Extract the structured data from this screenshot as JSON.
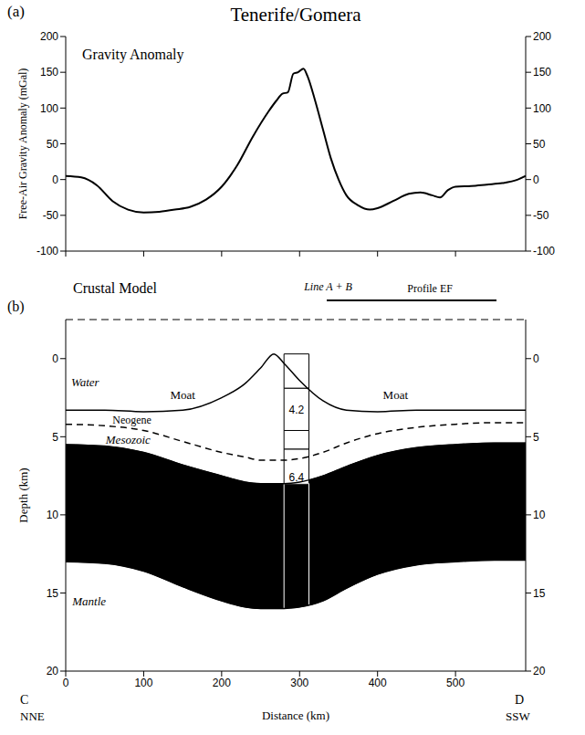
{
  "chart_data": [
    {
      "type": "line",
      "title": "Tenerife/Gomera",
      "panel_label": "(a)",
      "annotations": [
        "Gravity Anomaly"
      ],
      "y_label": "Free-Air Gravity Anomaly (mGal)",
      "x": [
        0,
        20,
        40,
        60,
        80,
        100,
        120,
        140,
        160,
        180,
        200,
        220,
        240,
        260,
        270,
        278,
        285,
        292,
        298,
        305,
        310,
        320,
        330,
        340,
        350,
        360,
        375,
        390,
        400,
        420,
        440,
        455,
        470,
        480,
        490,
        500,
        520,
        540,
        560,
        580,
        590
      ],
      "values": [
        5,
        3,
        -8,
        -30,
        -42,
        -46,
        -45,
        -42,
        -38,
        -28,
        -10,
        20,
        60,
        95,
        110,
        120,
        122,
        148,
        150,
        155,
        145,
        110,
        70,
        30,
        0,
        -22,
        -36,
        -42,
        -40,
        -30,
        -20,
        -18,
        -22,
        -25,
        -15,
        -10,
        -9,
        -7,
        -5,
        0,
        5
      ],
      "color": "#000000",
      "xlim": [
        0,
        590
      ],
      "xticks": [
        0,
        100,
        200,
        300,
        400,
        500
      ],
      "ylim": [
        -100,
        200
      ],
      "yticks": [
        -100,
        -50,
        0,
        50,
        100,
        150,
        200
      ],
      "grid": false,
      "tick_labels": "y"
    },
    {
      "type": "area",
      "title": "Crustal Model",
      "panel_label": "(b)",
      "x_label": "Distance (km)",
      "y_label": "Depth (km)",
      "x_ends": [
        "C",
        "D"
      ],
      "directions": [
        "NNE",
        "SSW"
      ],
      "annotations": [
        "Moat",
        "Moat"
      ],
      "profile": {
        "line_label": "Line A + B",
        "label": "Profile EF",
        "x": [
          335,
          553
        ]
      },
      "velocity_column": {
        "x": [
          280,
          312
        ],
        "depths": [
          -0.3,
          1.9,
          4.6,
          5.8,
          8.0,
          16.0
        ],
        "velocities": [
          null,
          4.2,
          null,
          6.4,
          null
        ]
      },
      "x": [
        0,
        50,
        100,
        150,
        200,
        230,
        250,
        267,
        280,
        300,
        330,
        360,
        400,
        450,
        500,
        550,
        590
      ],
      "series": [
        {
          "name": "Water",
          "color": "#000000",
          "line_style": "solid",
          "values": [
            3.3,
            3.3,
            3.4,
            3.3,
            2.5,
            1.6,
            0.6,
            -0.3,
            0.3,
            1.4,
            2.7,
            3.3,
            3.4,
            3.3,
            3.3,
            3.3,
            3.3
          ]
        },
        {
          "name": "Neogene",
          "color": "#000000",
          "line_style": "dashed",
          "values": [
            4.2,
            4.3,
            4.6,
            5.3,
            6.0,
            6.3,
            6.5,
            6.5,
            6.5,
            6.4,
            6.0,
            5.4,
            4.8,
            4.4,
            4.2,
            4.1,
            4.1
          ]
        },
        {
          "name": "Mesozoic",
          "color": "#000000",
          "line_style": "solid",
          "values": [
            5.5,
            5.6,
            6.0,
            6.8,
            7.5,
            7.9,
            8.0,
            8.0,
            8.0,
            7.9,
            7.5,
            6.9,
            6.2,
            5.7,
            5.5,
            5.4,
            5.4
          ]
        },
        {
          "name": "Mantle",
          "color": "#000000",
          "line_style": "solid",
          "values": [
            13.0,
            13.1,
            13.6,
            14.6,
            15.5,
            15.9,
            16.0,
            16.0,
            16.0,
            15.9,
            15.5,
            14.7,
            13.8,
            13.2,
            13.0,
            12.9,
            12.9
          ]
        }
      ],
      "xlim": [
        0,
        590
      ],
      "xticks": [
        0,
        100,
        200,
        300,
        400,
        500
      ],
      "ylim": [
        20,
        -2.5
      ],
      "yticks": [
        0,
        5,
        10,
        15,
        20
      ],
      "grid": false
    }
  ]
}
